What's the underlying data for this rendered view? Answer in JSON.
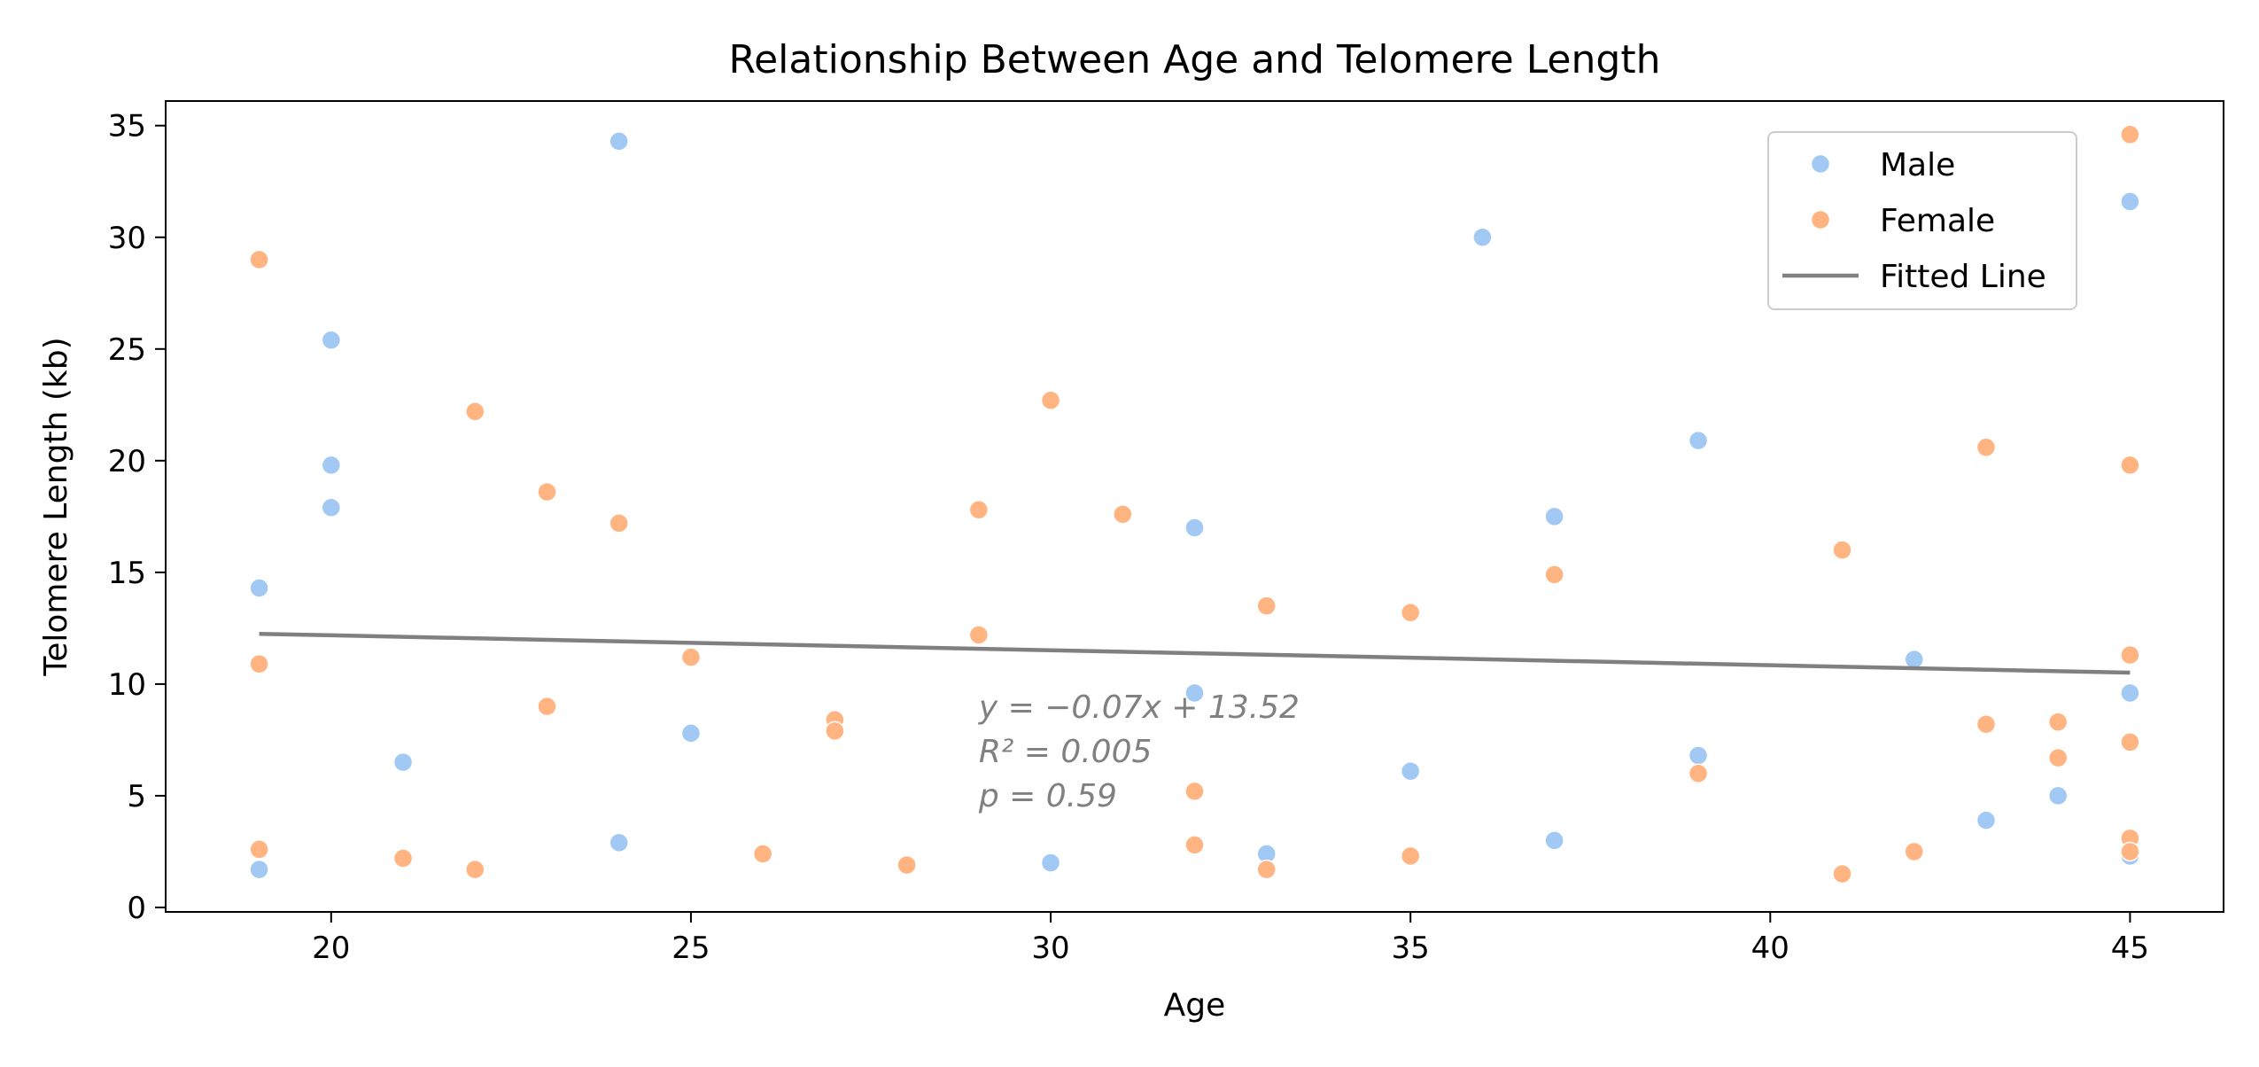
{
  "chart_data": {
    "type": "scatter",
    "title": "Relationship Between Age and Telomere Length",
    "xlabel": "Age",
    "ylabel": "Telomere Length (kb)",
    "xlim": [
      17.7,
      46.3
    ],
    "ylim": [
      -0.2,
      36.1
    ],
    "x_ticks": [
      20,
      25,
      30,
      35,
      40,
      45
    ],
    "y_ticks": [
      0,
      5,
      10,
      15,
      20,
      25,
      30,
      35
    ],
    "grid": false,
    "legend_position": "top-right",
    "series": [
      {
        "name": "Male",
        "color": "#a1c9f4",
        "marker": "circle",
        "points": [
          [
            19,
            14.3
          ],
          [
            19,
            1.7
          ],
          [
            20,
            25.4
          ],
          [
            20,
            19.8
          ],
          [
            20,
            17.9
          ],
          [
            21,
            6.5
          ],
          [
            24,
            34.3
          ],
          [
            24,
            2.9
          ],
          [
            25,
            7.8
          ],
          [
            30,
            2.0
          ],
          [
            32,
            17.0
          ],
          [
            32,
            9.6
          ],
          [
            33,
            2.4
          ],
          [
            35,
            6.1
          ],
          [
            36,
            30.0
          ],
          [
            37,
            17.5
          ],
          [
            37,
            3.0
          ],
          [
            39,
            20.9
          ],
          [
            39,
            6.8
          ],
          [
            42,
            11.1
          ],
          [
            43,
            3.9
          ],
          [
            44,
            5.0
          ],
          [
            45,
            31.6
          ],
          [
            45,
            9.6
          ],
          [
            45,
            2.3
          ]
        ]
      },
      {
        "name": "Female",
        "color": "#ffb482",
        "marker": "circle",
        "points": [
          [
            19,
            29.0
          ],
          [
            19,
            10.9
          ],
          [
            19,
            2.6
          ],
          [
            21,
            2.2
          ],
          [
            22,
            22.2
          ],
          [
            22,
            1.7
          ],
          [
            23,
            18.6
          ],
          [
            23,
            9.0
          ],
          [
            24,
            17.2
          ],
          [
            25,
            11.2
          ],
          [
            26,
            2.4
          ],
          [
            27,
            8.4
          ],
          [
            27,
            7.9
          ],
          [
            28,
            1.9
          ],
          [
            29,
            17.8
          ],
          [
            29,
            12.2
          ],
          [
            30,
            22.7
          ],
          [
            31,
            17.6
          ],
          [
            32,
            5.2
          ],
          [
            32,
            2.8
          ],
          [
            33,
            13.5
          ],
          [
            33,
            1.7
          ],
          [
            35,
            13.2
          ],
          [
            35,
            2.3
          ],
          [
            37,
            14.9
          ],
          [
            39,
            6.0
          ],
          [
            41,
            16.0
          ],
          [
            41,
            1.5
          ],
          [
            42,
            2.5
          ],
          [
            43,
            20.6
          ],
          [
            43,
            8.2
          ],
          [
            44,
            8.3
          ],
          [
            44,
            6.7
          ],
          [
            45,
            34.6
          ],
          [
            45,
            19.8
          ],
          [
            45,
            11.3
          ],
          [
            45,
            7.4
          ],
          [
            45,
            3.1
          ],
          [
            45,
            2.5
          ]
        ]
      }
    ],
    "fitted_line": {
      "name": "Fitted Line",
      "color": "#808080",
      "slope": -0.0669,
      "intercept": 13.52,
      "x_range": [
        19,
        45
      ]
    },
    "annotation": {
      "x": 29,
      "y_top": 9.2,
      "color": "#808080",
      "lines": [
        "y = −0.07x + 13.52",
        "R² = 0.005",
        "p = 0.59"
      ]
    }
  }
}
